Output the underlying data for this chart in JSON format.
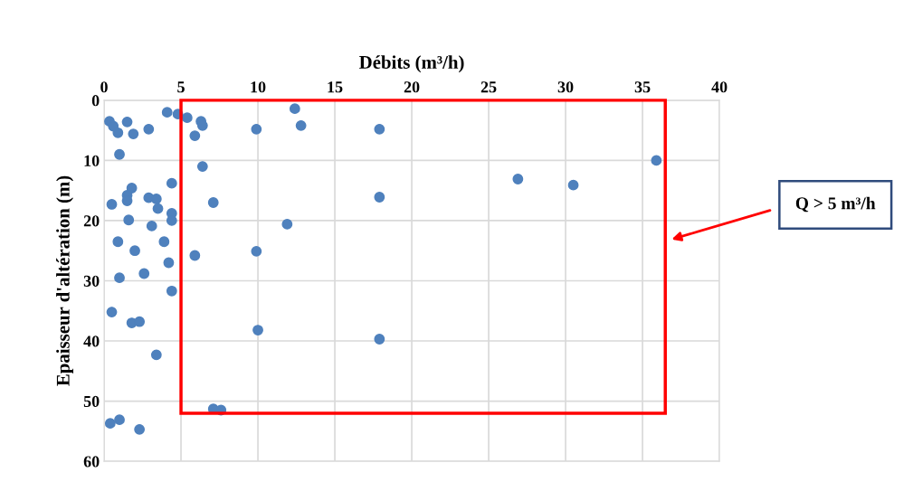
{
  "chart_data": {
    "type": "scatter",
    "xlabel": "Débits (m³/h)",
    "ylabel": "Epaisseur d'altération (m)",
    "xlim": [
      0,
      40
    ],
    "xticks": [
      0,
      5,
      10,
      15,
      20,
      25,
      30,
      35,
      40
    ],
    "ylim": [
      60,
      0
    ],
    "yticks": [
      0,
      10,
      20,
      30,
      40,
      50,
      60
    ],
    "grid": true,
    "marker": "circle",
    "legend": false,
    "annotations": [
      "Q > 5 m³/h"
    ],
    "series": [
      {
        "color": "#4f81bd",
        "x": [
          0.35,
          0.6,
          0.9,
          1.5,
          1.9,
          2.9,
          4.1,
          4.8,
          5.4,
          6.3,
          6.4,
          5.9,
          1.0,
          6.4,
          4.4,
          1.8,
          1.5,
          1.5,
          0.5,
          2.9,
          3.4,
          3.5,
          4.4,
          4.4,
          7.1,
          1.6,
          3.1,
          0.9,
          2.0,
          3.9,
          4.2,
          2.6,
          1.0,
          4.4,
          0.5,
          1.8,
          2.3,
          3.4,
          0.4,
          1.0,
          2.3,
          7.1,
          7.6,
          12.4,
          9.9,
          12.8,
          17.9,
          17.9,
          11.9,
          9.9,
          10.0,
          17.9,
          26.9,
          30.5,
          35.9,
          5.9
        ],
        "values": [
          3.5,
          4.3,
          5.4,
          3.6,
          5.6,
          4.8,
          2.0,
          2.3,
          2.9,
          3.5,
          4.2,
          5.9,
          9.0,
          11.0,
          13.8,
          14.6,
          15.8,
          16.7,
          17.3,
          16.2,
          16.4,
          18.0,
          18.8,
          20.0,
          17.0,
          19.9,
          20.9,
          23.5,
          25.0,
          23.5,
          27.0,
          28.8,
          29.5,
          31.7,
          35.2,
          37.0,
          36.8,
          42.3,
          53.7,
          53.1,
          54.7,
          51.3,
          51.5,
          1.4,
          4.8,
          4.2,
          4.8,
          16.1,
          20.6,
          25.1,
          38.2,
          39.7,
          13.1,
          14.1,
          10.0,
          25.8
        ]
      }
    ]
  }
}
